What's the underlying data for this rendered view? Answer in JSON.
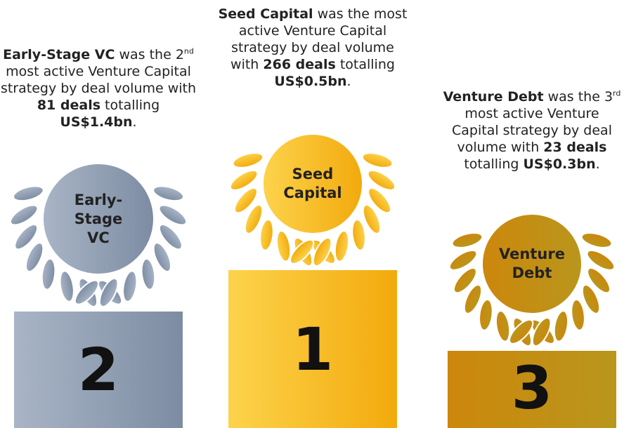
{
  "places": [
    {
      "badge_lines": [
        "Early-",
        "Stage",
        "VC"
      ],
      "rank": "2",
      "colors": [
        "#a9b5c6",
        "#7d8ca3"
      ],
      "description": [
        {
          "text": "Early-Stage VC",
          "bold": true
        },
        {
          "text": " was the "
        },
        {
          "text": "2"
        },
        {
          "text": "nd",
          "sup": true
        },
        {
          "text": " most active Venture Capital strategy by deal volume with "
        },
        {
          "text": "81 deals",
          "bold": true
        },
        {
          "text": " totalling "
        },
        {
          "text": "US$1.4bn",
          "bold": true
        },
        {
          "text": "."
        }
      ]
    },
    {
      "badge_lines": [
        "Seed",
        "Capital"
      ],
      "rank": "1",
      "colors": [
        "#fdd34c",
        "#f2aa0c"
      ],
      "description": [
        {
          "text": "Seed Capital",
          "bold": true
        },
        {
          "text": " was the most active Venture Capital strategy by deal volume with "
        },
        {
          "text": "266 deals",
          "bold": true
        },
        {
          "text": " totalling "
        },
        {
          "text": "US$0.5bn",
          "bold": true
        },
        {
          "text": "."
        }
      ]
    },
    {
      "badge_lines": [
        "Venture",
        "Debt"
      ],
      "rank": "3",
      "colors": [
        "#cc870c",
        "#b9961c"
      ],
      "description": [
        {
          "text": "Venture Debt",
          "bold": true
        },
        {
          "text": " was the "
        },
        {
          "text": "3"
        },
        {
          "text": "rd",
          "sup": true
        },
        {
          "text": " most active Venture Capital strategy by deal volume with "
        },
        {
          "text": "23 deals",
          "bold": true
        },
        {
          "text": " totalling "
        },
        {
          "text": "US$0.3bn",
          "bold": true
        },
        {
          "text": "."
        }
      ]
    }
  ]
}
